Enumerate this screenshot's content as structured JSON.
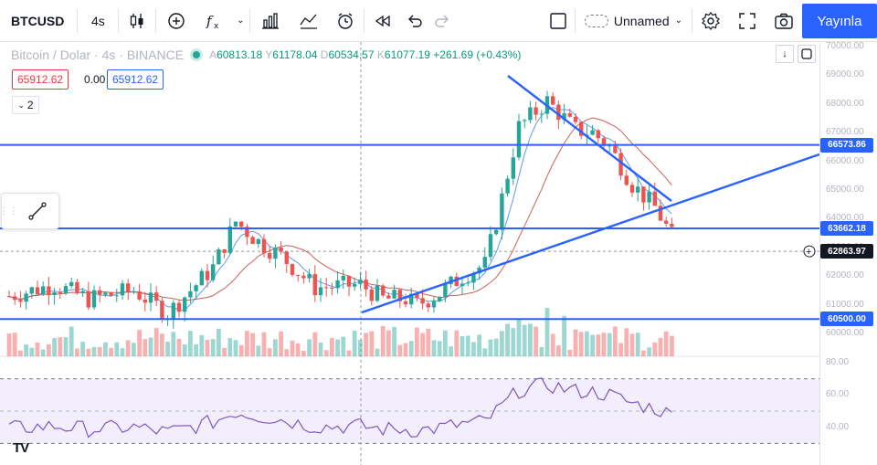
{
  "toolbar": {
    "symbol": "BTCUSD",
    "interval": "4s",
    "layout_name": "Unnamed",
    "publish_label": "Yayınla"
  },
  "legend": {
    "title": "Bitcoin / Dolar · 4s · BINANCE",
    "open_label": "A",
    "open": "60813.18",
    "high_label": "Y",
    "high": "61178.04",
    "low_label": "D",
    "low": "60534.57",
    "close_label": "K",
    "close": "61077.19",
    "change": "+261.69 (+0.43%)"
  },
  "indicator": {
    "sell_price": "65912.62",
    "spread": "0.00",
    "buy_price": "65912.62",
    "collapse_count": "2"
  },
  "price_axis": {
    "ticks": [
      "70000.00",
      "69000.00",
      "68000.00",
      "67000.00",
      "66000.00",
      "65000.00",
      "64000.00",
      "63000.00",
      "62000.00",
      "61000.00",
      "60000.00"
    ],
    "tag_resistance": "66573.86",
    "tag_support": "63662.18",
    "tag_crosshair": "62863.97",
    "tag_bottom": "60500.00"
  },
  "rsi_axis": {
    "ticks": [
      "80.00",
      "60.00",
      "40.00"
    ]
  },
  "colors": {
    "accent": "#2962ff",
    "up": "#26a69a",
    "down": "#ef5350",
    "hline": "#2962ff"
  },
  "icons": {
    "logo": "tradingview-logo-icon"
  },
  "logo_text": "TV"
}
